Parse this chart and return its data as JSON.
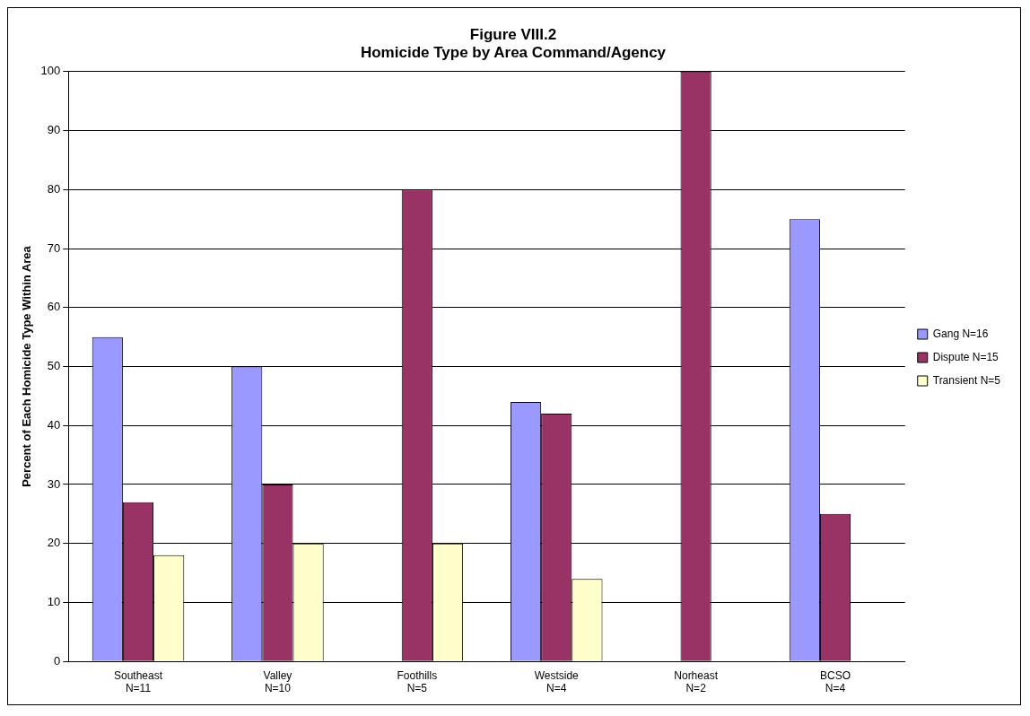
{
  "chart_data": {
    "type": "bar",
    "title": [
      "Figure VIII.2",
      "Homicide Type by Area Command/Agency"
    ],
    "ylabel": "Percent of Each Homicide Type Within Area",
    "categories": [
      "Southeast\nN=11",
      "Valley\nN=10",
      "Foothills\nN=5",
      "Westside\nN=4",
      "Norheast\nN=2",
      "BCSO\nN=4"
    ],
    "series": [
      {
        "name": "Gang N=16",
        "color": "#9999ff",
        "values": [
          55,
          50,
          0,
          44,
          0,
          75
        ]
      },
      {
        "name": "Dispute N=15",
        "color": "#993366",
        "values": [
          27,
          30,
          80,
          42,
          100,
          25
        ]
      },
      {
        "name": "Transient N=5",
        "color": "#ffffcc",
        "values": [
          18,
          20,
          20,
          14,
          0,
          0
        ]
      }
    ],
    "ylim": [
      0,
      100
    ],
    "yticks": [
      0,
      10,
      20,
      30,
      40,
      50,
      60,
      70,
      80,
      90,
      100
    ],
    "grid": "y",
    "legend": "right"
  }
}
